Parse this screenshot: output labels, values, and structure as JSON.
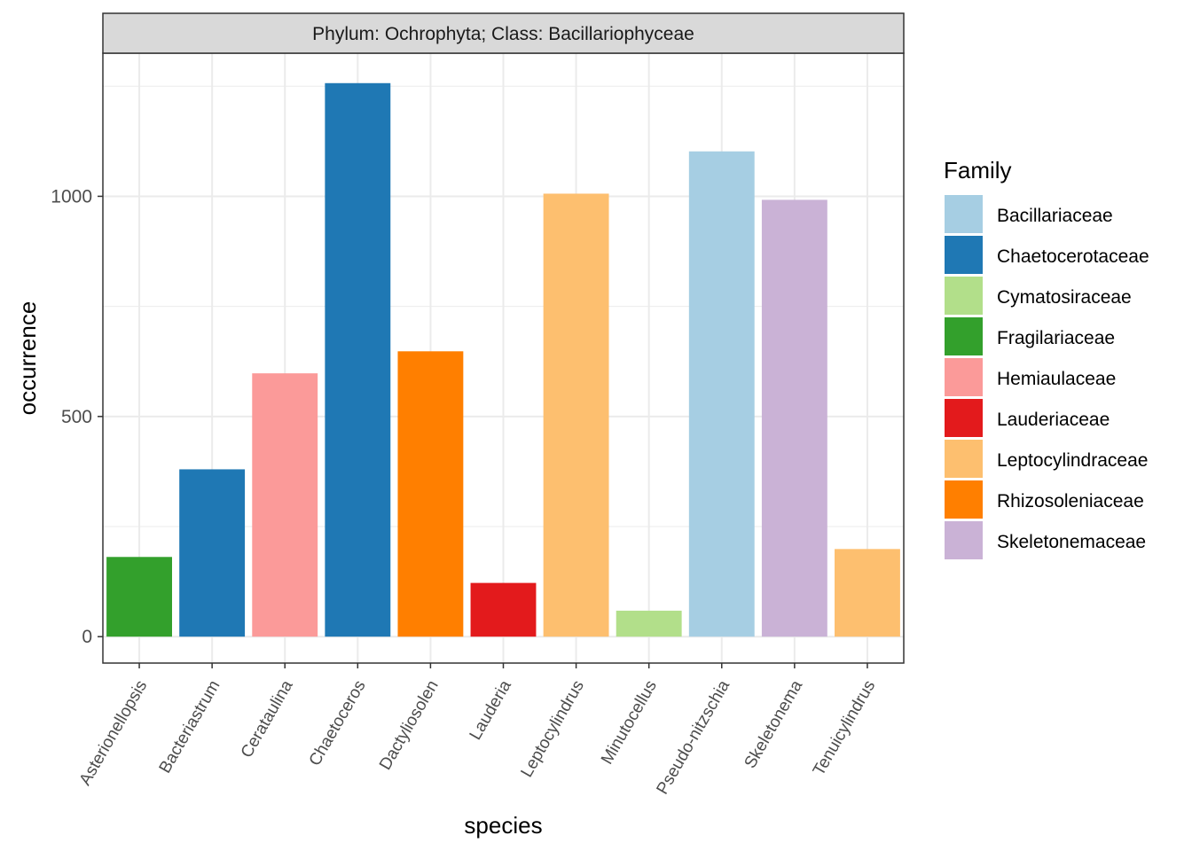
{
  "chart_data": {
    "type": "bar",
    "strip_label": "Phylum: Ochrophyta; Class: Bacillariophyceae",
    "xlabel": "species",
    "ylabel": "occurrence",
    "ylim": [
      -60,
      1325
    ],
    "yticks": [
      0,
      500,
      1000
    ],
    "grid": true,
    "legend_position": "right",
    "legend_title": "Family",
    "categories": [
      "Asterionellopsis",
      "Bacteriastrum",
      "Cerataulina",
      "Chaetoceros",
      "Dactyliosolen",
      "Lauderia",
      "Leptocylindrus",
      "Minutocellus",
      "Pseudo-nitzschia",
      "Skeletonema",
      "Tenuicylindrus"
    ],
    "values": [
      181,
      380,
      598,
      1257,
      648,
      122,
      1006,
      59,
      1102,
      992,
      199
    ],
    "families": [
      "Fragilariaceae",
      "Chaetocerotaceae",
      "Hemiaulaceae",
      "Chaetocerotaceae",
      "Rhizosoleniaceae",
      "Lauderiaceae",
      "Leptocylindraceae",
      "Cymatosiraceae",
      "Bacillariaceae",
      "Skeletonemaceae",
      "Leptocylindraceae"
    ],
    "legend": [
      {
        "name": "Bacillariaceae",
        "color": "#A6CEE3"
      },
      {
        "name": "Chaetocerotaceae",
        "color": "#1F78B4"
      },
      {
        "name": "Cymatosiraceae",
        "color": "#B2DF8A"
      },
      {
        "name": "Fragilariaceae",
        "color": "#33A02C"
      },
      {
        "name": "Hemiaulaceae",
        "color": "#FB9A99"
      },
      {
        "name": "Lauderiaceae",
        "color": "#E31A1C"
      },
      {
        "name": "Leptocylindraceae",
        "color": "#FDBF6F"
      },
      {
        "name": "Rhizosoleniaceae",
        "color": "#FF7F00"
      },
      {
        "name": "Skeletonemaceae",
        "color": "#CAB2D6"
      }
    ]
  }
}
